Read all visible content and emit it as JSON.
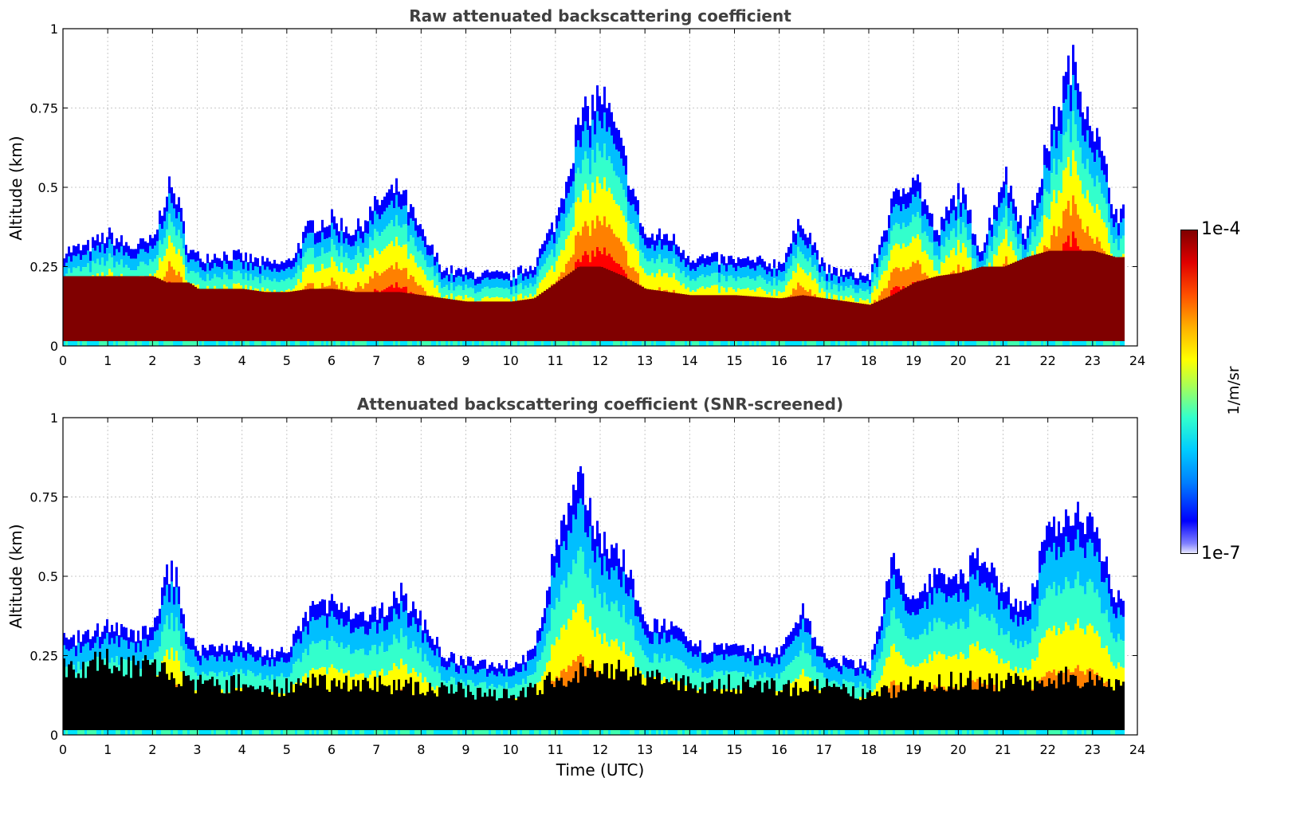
{
  "chart_data": [
    {
      "type": "heatmap",
      "title": "Raw attenuated backscattering coefficient",
      "xlabel": "",
      "ylabel": "Altitude (km)",
      "xlim": [
        0,
        24
      ],
      "ylim": [
        0,
        1
      ],
      "xticks": [
        "0",
        "1",
        "2",
        "3",
        "4",
        "5",
        "6",
        "7",
        "8",
        "9",
        "10",
        "11",
        "12",
        "13",
        "14",
        "15",
        "16",
        "17",
        "18",
        "19",
        "20",
        "21",
        "22",
        "23",
        "24"
      ],
      "yticks": [
        "0",
        "0.25",
        "0.5",
        "0.75",
        "1"
      ],
      "grid": true,
      "screened": false,
      "time_utc": [
        0,
        0.5,
        1,
        1.5,
        2,
        2.3,
        2.5,
        2.8,
        3,
        3.5,
        4,
        4.5,
        5,
        5.5,
        6,
        6.5,
        7,
        7.5,
        8,
        8.5,
        9,
        10,
        10.5,
        11,
        11.5,
        12,
        12.5,
        13,
        13.5,
        14,
        15,
        16,
        16.5,
        17,
        18,
        18.5,
        19,
        19.5,
        20,
        20.5,
        21,
        21.5,
        22,
        22.5,
        23,
        23.5,
        23.7
      ],
      "layer_top_km": [
        0.3,
        0.31,
        0.35,
        0.31,
        0.33,
        0.5,
        0.48,
        0.3,
        0.28,
        0.29,
        0.28,
        0.26,
        0.26,
        0.38,
        0.4,
        0.36,
        0.45,
        0.5,
        0.35,
        0.24,
        0.23,
        0.22,
        0.26,
        0.4,
        0.7,
        0.8,
        0.6,
        0.34,
        0.35,
        0.28,
        0.27,
        0.26,
        0.4,
        0.24,
        0.22,
        0.45,
        0.55,
        0.35,
        0.5,
        0.3,
        0.55,
        0.35,
        0.65,
        0.9,
        0.7,
        0.42,
        0.42
      ],
      "core_top_km": [
        0.22,
        0.22,
        0.22,
        0.22,
        0.22,
        0.2,
        0.2,
        0.2,
        0.18,
        0.18,
        0.18,
        0.17,
        0.17,
        0.18,
        0.18,
        0.17,
        0.17,
        0.17,
        0.16,
        0.15,
        0.14,
        0.14,
        0.15,
        0.2,
        0.25,
        0.25,
        0.22,
        0.18,
        0.17,
        0.16,
        0.16,
        0.15,
        0.16,
        0.15,
        0.13,
        0.16,
        0.2,
        0.22,
        0.23,
        0.25,
        0.25,
        0.28,
        0.3,
        0.3,
        0.3,
        0.28,
        0.28
      ]
    },
    {
      "type": "heatmap",
      "title": "Attenuated backscattering coefficient (SNR-screened)",
      "xlabel": "Time (UTC)",
      "ylabel": "Altitude (km)",
      "xlim": [
        0,
        24
      ],
      "ylim": [
        0,
        1
      ],
      "xticks": [
        "0",
        "1",
        "2",
        "3",
        "4",
        "5",
        "6",
        "7",
        "8",
        "9",
        "10",
        "11",
        "12",
        "13",
        "14",
        "15",
        "16",
        "17",
        "18",
        "19",
        "20",
        "21",
        "22",
        "23",
        "24"
      ],
      "yticks": [
        "0",
        "0.25",
        "0.5",
        "0.75",
        "1"
      ],
      "grid": true,
      "screened": true,
      "time_utc": [
        0,
        0.5,
        1,
        1.5,
        2,
        2.3,
        2.5,
        2.8,
        3,
        3.5,
        4,
        4.5,
        5,
        5.5,
        6,
        6.5,
        7,
        7.5,
        8,
        8.5,
        9,
        10,
        10.5,
        11,
        11.5,
        12,
        12.5,
        13,
        13.5,
        14,
        15,
        16,
        16.5,
        17,
        18,
        18.5,
        19,
        19.5,
        20,
        20.5,
        21,
        21.5,
        22,
        22.5,
        23,
        23.5,
        23.7
      ],
      "layer_top_km": [
        0.3,
        0.31,
        0.35,
        0.31,
        0.33,
        0.52,
        0.5,
        0.3,
        0.27,
        0.28,
        0.28,
        0.26,
        0.26,
        0.4,
        0.42,
        0.36,
        0.38,
        0.45,
        0.36,
        0.25,
        0.23,
        0.22,
        0.26,
        0.6,
        0.8,
        0.62,
        0.55,
        0.34,
        0.35,
        0.28,
        0.27,
        0.26,
        0.4,
        0.24,
        0.22,
        0.55,
        0.4,
        0.52,
        0.48,
        0.58,
        0.45,
        0.4,
        0.64,
        0.7,
        0.68,
        0.44,
        0.44
      ],
      "black_top_km": [
        0.22,
        0.22,
        0.23,
        0.22,
        0.22,
        0.2,
        0.18,
        0.16,
        0.16,
        0.16,
        0.16,
        0.15,
        0.15,
        0.16,
        0.17,
        0.16,
        0.16,
        0.16,
        0.15,
        0.14,
        0.14,
        0.13,
        0.14,
        0.18,
        0.2,
        0.2,
        0.2,
        0.18,
        0.17,
        0.16,
        0.16,
        0.15,
        0.15,
        0.15,
        0.12,
        0.14,
        0.16,
        0.17,
        0.17,
        0.17,
        0.17,
        0.16,
        0.18,
        0.18,
        0.18,
        0.17,
        0.17
      ]
    }
  ],
  "colorbar": {
    "max_label": "1e-4",
    "min_label": "1e-7",
    "unit": "1/m/sr",
    "colors": [
      "#e6e6ff",
      "#0000ff",
      "#00bfff",
      "#33ffcc",
      "#ffff00",
      "#ff8000",
      "#ff0000",
      "#800000"
    ]
  }
}
